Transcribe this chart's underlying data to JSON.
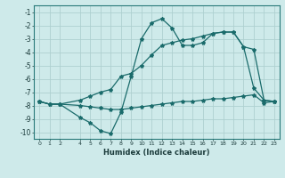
{
  "xlabel": "Humidex (Indice chaleur)",
  "bg_color": "#ceeaea",
  "grid_color": "#aed0d0",
  "line_color": "#1a6b6b",
  "line1_x": [
    0,
    1,
    2,
    4,
    5,
    6,
    7,
    8,
    9,
    10,
    11,
    12,
    13,
    14,
    15,
    16,
    17,
    18,
    19,
    20,
    21,
    22,
    23
  ],
  "line1_y": [
    -7.7,
    -7.9,
    -7.9,
    -8.9,
    -9.3,
    -9.9,
    -10.1,
    -8.5,
    -5.8,
    -3.0,
    -1.8,
    -1.5,
    -2.2,
    -3.5,
    -3.5,
    -3.3,
    -2.6,
    -2.5,
    -2.5,
    -3.6,
    -6.7,
    -7.6,
    -7.7
  ],
  "line2_x": [
    0,
    1,
    2,
    4,
    5,
    6,
    7,
    8,
    9,
    10,
    11,
    12,
    13,
    14,
    15,
    16,
    17,
    18,
    19,
    20,
    21,
    22,
    23
  ],
  "line2_y": [
    -7.7,
    -7.9,
    -7.9,
    -7.6,
    -7.3,
    -7.0,
    -6.8,
    -5.8,
    -5.6,
    -5.0,
    -4.2,
    -3.5,
    -3.3,
    -3.1,
    -3.0,
    -2.8,
    -2.6,
    -2.5,
    -2.5,
    -3.6,
    -3.8,
    -7.6,
    -7.7
  ],
  "line3_x": [
    0,
    1,
    2,
    4,
    5,
    6,
    7,
    8,
    9,
    10,
    11,
    12,
    13,
    14,
    15,
    16,
    17,
    18,
    19,
    20,
    21,
    22,
    23
  ],
  "line3_y": [
    -7.7,
    -7.9,
    -7.9,
    -8.0,
    -8.1,
    -8.2,
    -8.3,
    -8.3,
    -8.2,
    -8.1,
    -8.0,
    -7.9,
    -7.8,
    -7.7,
    -7.7,
    -7.6,
    -7.5,
    -7.5,
    -7.4,
    -7.3,
    -7.2,
    -7.8,
    -7.7
  ],
  "xlim": [
    -0.5,
    23.5
  ],
  "ylim": [
    -10.5,
    -0.5
  ],
  "xticks": [
    0,
    1,
    2,
    4,
    5,
    6,
    7,
    8,
    9,
    10,
    11,
    12,
    13,
    14,
    15,
    16,
    17,
    18,
    19,
    20,
    21,
    22,
    23
  ],
  "yticks": [
    -1,
    -2,
    -3,
    -4,
    -5,
    -6,
    -7,
    -8,
    -9,
    -10
  ]
}
